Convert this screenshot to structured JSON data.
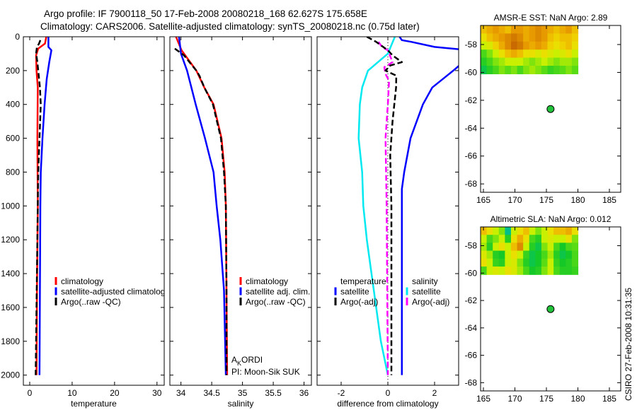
{
  "title": {
    "line1": "Argo profile: IF 7900118_50 17-Feb-2008 20080218_168 62.627S 175.658E",
    "line2": "Climatology: CARS2006. Satellite-adjusted climatology: synTS_20080218.nc (0.75d later)"
  },
  "footer": "CSIRO 27-Feb-2008 10:31:35",
  "annotation": {
    "a": "A",
    "sub": "K",
    "rest": "ORDI",
    "pi": "PI: Moon-Sik SUK"
  },
  "colors": {
    "red": "#ff0000",
    "blue": "#0000ff",
    "cyan": "#00e8f0",
    "magenta": "#ff00ff",
    "black": "#000000",
    "float": "#22c23a"
  },
  "chart_data": [
    {
      "id": "temperature",
      "type": "line",
      "xlabel": "temperature",
      "ylabel": "",
      "xlim": [
        -1.5,
        31.7
      ],
      "ylim": [
        0,
        2060
      ],
      "y_reversed": true,
      "xticks": [
        0,
        10,
        20,
        30
      ],
      "yticks": [
        0,
        200,
        400,
        600,
        800,
        1000,
        1200,
        1400,
        1600,
        1800,
        2000
      ],
      "legend": {
        "placement": "center-left",
        "entries": [
          {
            "label": "climatology",
            "color": "#ff0000"
          },
          {
            "label": "satellite-adjusted climatology",
            "color": "#0000ff"
          },
          {
            "label": "Argo(..raw -QC)",
            "color": "#000000"
          }
        ]
      },
      "series": [
        {
          "name": "climatology",
          "color": "#ff0000",
          "dash": false,
          "points": [
            [
              3.9,
              0
            ],
            [
              3.6,
              40
            ],
            [
              2.0,
              70
            ],
            [
              1.5,
              110
            ],
            [
              1.6,
              200
            ],
            [
              1.9,
              300
            ],
            [
              1.8,
              600
            ],
            [
              1.9,
              1000
            ],
            [
              1.7,
              1500
            ],
            [
              1.6,
              2000
            ]
          ]
        },
        {
          "name": "satellite-adjusted climatology",
          "color": "#0000ff",
          "dash": false,
          "points": [
            [
              4.4,
              0
            ],
            [
              4.4,
              60
            ],
            [
              5.1,
              80
            ],
            [
              4.6,
              150
            ],
            [
              4.0,
              250
            ],
            [
              3.5,
              400
            ],
            [
              3.0,
              600
            ],
            [
              2.6,
              800
            ],
            [
              2.5,
              1000
            ],
            [
              2.4,
              1500
            ],
            [
              2.3,
              2000
            ]
          ]
        },
        {
          "name": "Argo(..raw -QC)",
          "color": "#000000",
          "dash": true,
          "points": [
            [
              2.5,
              20
            ],
            [
              2.2,
              40
            ],
            [
              1.7,
              60
            ],
            [
              1.5,
              100
            ],
            [
              1.8,
              150
            ],
            [
              2.0,
              200
            ],
            [
              2.4,
              300
            ],
            [
              2.6,
              400
            ],
            [
              2.3,
              600
            ],
            [
              2.0,
              800
            ],
            [
              1.8,
              1200
            ],
            [
              1.6,
              1600
            ],
            [
              1.4,
              2000
            ]
          ]
        }
      ]
    },
    {
      "id": "salinity",
      "type": "line",
      "xlabel": "salinity",
      "xlim": [
        33.82,
        36.12
      ],
      "ylim": [
        0,
        2060
      ],
      "y_reversed": true,
      "xticks": [
        34,
        34.5,
        35,
        35.5,
        36
      ],
      "yticks": [
        0,
        200,
        400,
        600,
        800,
        1000,
        1200,
        1400,
        1600,
        1800,
        2000
      ],
      "legend": {
        "placement": "center-right",
        "entries": [
          {
            "label": "climatology",
            "color": "#ff0000"
          },
          {
            "label": "satellite adj. clim.",
            "color": "#0000ff"
          },
          {
            "label": "Argo(..raw -QC)",
            "color": "#000000"
          }
        ]
      },
      "series": [
        {
          "name": "climatology",
          "color": "#ff0000",
          "dash": false,
          "points": [
            [
              33.92,
              0
            ],
            [
              34.01,
              80
            ],
            [
              34.25,
              200
            ],
            [
              34.38,
              300
            ],
            [
              34.53,
              400
            ],
            [
              34.66,
              600
            ],
            [
              34.71,
              800
            ],
            [
              34.73,
              1000
            ],
            [
              34.74,
              1500
            ],
            [
              34.75,
              2000
            ]
          ]
        },
        {
          "name": "satellite adj. clim.",
          "color": "#0000ff",
          "dash": false,
          "points": [
            [
              33.97,
              0
            ],
            [
              34.0,
              100
            ],
            [
              34.1,
              200
            ],
            [
              34.24,
              400
            ],
            [
              34.39,
              600
            ],
            [
              34.53,
              800
            ],
            [
              34.58,
              1000
            ],
            [
              34.64,
              1200
            ],
            [
              34.7,
              1500
            ],
            [
              34.73,
              2000
            ]
          ]
        },
        {
          "name": "Argo(..raw -QC)",
          "color": "#000000",
          "dash": true,
          "points": [
            [
              33.9,
              70
            ],
            [
              34.05,
              110
            ],
            [
              34.25,
              200
            ],
            [
              34.3,
              230
            ],
            [
              34.38,
              300
            ],
            [
              34.52,
              400
            ],
            [
              34.65,
              600
            ],
            [
              34.7,
              800
            ],
            [
              34.73,
              1000
            ],
            [
              34.74,
              1500
            ],
            [
              34.74,
              2000
            ]
          ]
        }
      ]
    },
    {
      "id": "difference",
      "type": "line",
      "xlabel": "difference from climatology",
      "xlim": [
        -3.03,
        3.03
      ],
      "ylim": [
        0,
        2060
      ],
      "y_reversed": true,
      "xticks": [
        -2,
        0,
        2
      ],
      "yticks": [
        0,
        200,
        400,
        600,
        800,
        1000,
        1200,
        1400,
        1600,
        1800,
        2000
      ],
      "legend": {
        "placement": "center",
        "groups": [
          {
            "heading": "temperature",
            "entries": [
              {
                "label": "satellite",
                "color": "#0000ff"
              },
              {
                "label": "Argo(-adj)",
                "color": "#000000"
              }
            ]
          },
          {
            "heading": "salinity",
            "entries": [
              {
                "label": "satellite",
                "color": "#00e8f0"
              },
              {
                "label": "Argo(-adj)",
                "color": "#ff00ff"
              }
            ]
          }
        ]
      },
      "series": [
        {
          "name": "temperature satellite (near surface)",
          "color": "#0000ff",
          "dash": false,
          "points": [
            [
              0.5,
              0
            ],
            [
              0.6,
              20
            ],
            [
              1.0,
              30
            ],
            [
              2.0,
              60
            ],
            [
              3.1,
              75
            ]
          ]
        },
        {
          "name": "temperature satellite",
          "color": "#0000ff",
          "dash": false,
          "points": [
            [
              3.1,
              165
            ],
            [
              2.8,
              200
            ],
            [
              1.9,
              300
            ],
            [
              1.5,
              400
            ],
            [
              0.97,
              600
            ],
            [
              0.7,
              800
            ],
            [
              0.6,
              900
            ],
            [
              0.6,
              1200
            ],
            [
              0.6,
              2000
            ]
          ]
        },
        {
          "name": "salinity satellite",
          "color": "#00e8f0",
          "dash": false,
          "points": [
            [
              0.3,
              0
            ],
            [
              0.0,
              100
            ],
            [
              -0.85,
              200
            ],
            [
              -1.1,
              300
            ],
            [
              -1.2,
              400
            ],
            [
              -1.25,
              600
            ],
            [
              -1.1,
              800
            ],
            [
              -1.05,
              1000
            ],
            [
              -0.9,
              1200
            ],
            [
              -0.6,
              1500
            ],
            [
              -0.3,
              1800
            ],
            [
              0.0,
              2000
            ]
          ]
        },
        {
          "name": "salinity Argo(-adj)",
          "color": "#ff00ff",
          "dash": true,
          "points": [
            [
              -0.4,
              30
            ],
            [
              -0.25,
              60
            ],
            [
              0.0,
              80
            ],
            [
              0.2,
              150
            ],
            [
              -0.15,
              180
            ],
            [
              -0.1,
              220
            ],
            [
              0.05,
              260
            ],
            [
              0.0,
              400
            ],
            [
              -0.1,
              600
            ],
            [
              -0.05,
              1000
            ],
            [
              0.0,
              2000
            ]
          ]
        },
        {
          "name": "temperature Argo(-adj)",
          "color": "#000000",
          "dash": true,
          "points": [
            [
              -0.9,
              0
            ],
            [
              -0.5,
              30
            ],
            [
              -0.2,
              60
            ],
            [
              0.0,
              80
            ],
            [
              0.2,
              110
            ],
            [
              0.6,
              150
            ],
            [
              0.1,
              170
            ],
            [
              -0.1,
              200
            ],
            [
              0.36,
              230
            ],
            [
              0.35,
              300
            ],
            [
              0.2,
              500
            ],
            [
              0.1,
              700
            ],
            [
              0.15,
              1000
            ],
            [
              0.15,
              2000
            ]
          ]
        }
      ]
    },
    {
      "id": "amsr-sst-map",
      "type": "heatmap",
      "title": "AMSR-E SST: NaN Argo: 2.89",
      "xlim": [
        164.55,
        186.8
      ],
      "ylim": [
        -68.6,
        -56.63
      ],
      "xticks": [
        165,
        170,
        175,
        180,
        185
      ],
      "yticks": [
        -58,
        -60,
        -62,
        -64,
        -66,
        -68
      ],
      "grid_extent": {
        "lon": [
          164.55,
          180
        ],
        "lat": [
          -60.1,
          -56.63
        ]
      },
      "grid": [
        [
          0.7,
          0.75,
          0.8,
          0.75,
          0.7,
          0.8,
          0.8,
          0.75,
          0.8,
          0.85,
          0.8,
          0.75,
          0.7,
          0.75,
          0.8,
          0.7
        ],
        [
          0.6,
          0.7,
          0.75,
          0.8,
          0.85,
          0.9,
          0.85,
          0.75,
          0.8,
          0.85,
          0.8,
          0.7,
          0.65,
          0.7,
          0.7,
          0.65
        ],
        [
          0.5,
          0.55,
          0.65,
          0.75,
          0.85,
          0.95,
          0.9,
          0.8,
          0.75,
          0.8,
          0.75,
          0.65,
          0.6,
          0.65,
          0.7,
          0.6
        ],
        [
          0.3,
          0.4,
          0.5,
          0.6,
          0.7,
          0.75,
          0.7,
          0.6,
          0.6,
          0.55,
          0.6,
          0.55,
          0.5,
          0.55,
          0.6,
          0.5
        ],
        [
          0.2,
          0.3,
          0.4,
          0.45,
          0.5,
          0.5,
          0.5,
          0.45,
          0.4,
          0.45,
          0.5,
          0.45,
          0.4,
          0.45,
          0.45,
          0.4
        ],
        [
          0.1,
          0.2,
          0.3,
          0.4,
          0.35,
          0.4,
          0.3,
          0.4,
          0.45,
          0.4,
          0.35,
          0.25,
          0.3,
          0.35,
          0.4,
          0.35
        ]
      ],
      "float_position": {
        "lon": 175.658,
        "lat": -62.627
      }
    },
    {
      "id": "altimetric-sla-map",
      "type": "heatmap",
      "title": "Altimetric SLA: NaN Argo: 0.012",
      "xlim": [
        164.55,
        186.8
      ],
      "ylim": [
        -68.6,
        -56.63
      ],
      "xticks": [
        165,
        170,
        175,
        180,
        185
      ],
      "yticks": [
        -58,
        -60,
        -62,
        -64,
        -66,
        -68
      ],
      "grid_extent": {
        "lon": [
          164.55,
          180
        ],
        "lat": [
          -60.1,
          -56.63
        ]
      },
      "grid": [
        [
          0.7,
          0.6,
          0.5,
          0.4,
          0.0,
          0.5,
          0.6,
          0.7,
          0.5,
          0.4,
          0.5,
          0.6,
          0.7,
          0.7,
          0.75,
          0.6
        ],
        [
          0.5,
          0.3,
          0.4,
          0.5,
          0.2,
          0.6,
          0.75,
          0.6,
          0.3,
          0.2,
          0.5,
          0.55,
          0.5,
          0.5,
          0.6,
          0.4
        ],
        [
          0.45,
          0.2,
          0.5,
          0.6,
          0.5,
          0.7,
          0.85,
          0.5,
          0.2,
          0.1,
          0.4,
          0.5,
          0.3,
          0.15,
          0.3,
          0.35
        ],
        [
          0.55,
          0.45,
          0.2,
          0.15,
          0.5,
          0.6,
          0.5,
          0.25,
          0.1,
          0.15,
          0.3,
          0.45,
          0.2,
          0.1,
          0.15,
          0.3
        ],
        [
          0.6,
          0.5,
          0.25,
          0.2,
          0.5,
          0.55,
          0.4,
          0.2,
          0.1,
          0.15,
          0.35,
          0.5,
          0.25,
          0.15,
          0.2,
          0.3
        ],
        [
          0.3,
          0.5,
          0.55,
          0.5,
          0.6,
          0.55,
          0.45,
          0.3,
          0.15,
          0.2,
          0.4,
          0.5,
          0.3,
          0.2,
          0.2,
          0.25
        ]
      ],
      "float_position": {
        "lon": 175.658,
        "lat": -62.627
      }
    }
  ]
}
